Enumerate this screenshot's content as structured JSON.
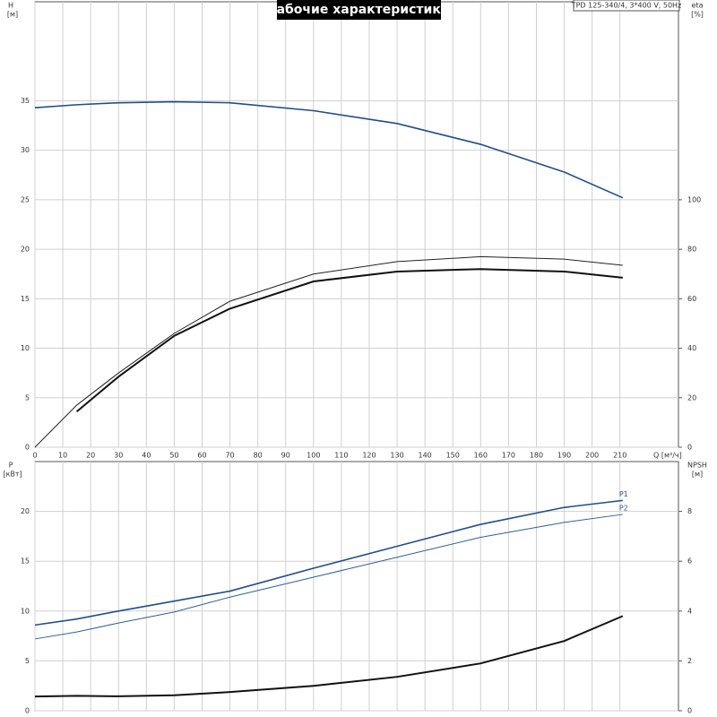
{
  "chart_data": [
    {
      "type": "line",
      "title": "Рабочие характеристики",
      "annotation": "TPD 125-340/4, 3*400 V, 50Hz",
      "xlabel": "Q [м³/ч]",
      "ylabel": "H",
      "ylabel_unit": "[м]",
      "y2label": "eta",
      "y2label_unit": "[%]",
      "x": [
        0,
        15,
        30,
        50,
        70,
        100,
        130,
        160,
        190,
        211
      ],
      "xlim": [
        0,
        231
      ],
      "xticks": [
        0,
        10,
        20,
        30,
        40,
        50,
        60,
        70,
        80,
        90,
        100,
        110,
        120,
        130,
        140,
        150,
        160,
        170,
        180,
        190,
        200,
        210
      ],
      "ylim": [
        0,
        45
      ],
      "yticks": [
        0,
        5,
        10,
        15,
        20,
        25,
        30,
        35
      ],
      "y2lim": [
        0,
        180
      ],
      "y2ticks": [
        0,
        20,
        40,
        60,
        80,
        100
      ],
      "grid": true,
      "series": [
        {
          "color": "#1f4e8c",
          "linewidth": 1.6,
          "values": [
            34.3,
            34.6,
            34.8,
            34.9,
            34.8,
            34.0,
            32.7,
            30.6,
            27.8,
            25.2
          ]
        },
        {
          "color": "#222222",
          "linewidth": 1,
          "axis": "y2",
          "values": [
            0,
            17,
            30,
            46,
            59,
            70,
            75,
            77,
            76,
            73.5
          ]
        },
        {
          "color": "#111111",
          "linewidth": 2,
          "axis": "y2",
          "values": [
            null,
            14.4,
            28.5,
            45,
            56,
            67,
            71,
            72,
            71,
            68.5
          ]
        }
      ]
    },
    {
      "type": "line",
      "ylabel": "P",
      "ylabel_unit": "[кВт]",
      "y2label": "NPSH",
      "y2label_unit": "[м]",
      "x": [
        0,
        15,
        30,
        50,
        70,
        100,
        130,
        160,
        190,
        211
      ],
      "xlim": [
        0,
        231
      ],
      "xticks": [
        0,
        10,
        20,
        30,
        40,
        50,
        60,
        70,
        80,
        90,
        100,
        110,
        120,
        130,
        140,
        150,
        160,
        170,
        180,
        190,
        200,
        210
      ],
      "ylim": [
        0,
        25
      ],
      "yticks": [
        0,
        5,
        10,
        15,
        20
      ],
      "y2lim": [
        0,
        10
      ],
      "y2ticks": [
        0,
        2,
        4,
        6,
        8
      ],
      "grid": true,
      "series": [
        {
          "name": "P1",
          "color": "#1f4e8c",
          "linewidth": 1.6,
          "values": [
            8.6,
            9.2,
            10.0,
            11.0,
            12.0,
            14.3,
            16.5,
            18.7,
            20.4,
            21.1
          ]
        },
        {
          "name": "P2",
          "color": "#2f5f9c",
          "linewidth": 1,
          "values": [
            7.2,
            7.9,
            8.8,
            9.9,
            11.4,
            13.4,
            15.4,
            17.4,
            18.9,
            19.7
          ]
        },
        {
          "color": "#111111",
          "linewidth": 2,
          "axis": "y2",
          "values": [
            0.57,
            0.6,
            0.58,
            0.62,
            0.75,
            1.0,
            1.36,
            1.9,
            2.8,
            3.8
          ]
        }
      ]
    }
  ]
}
